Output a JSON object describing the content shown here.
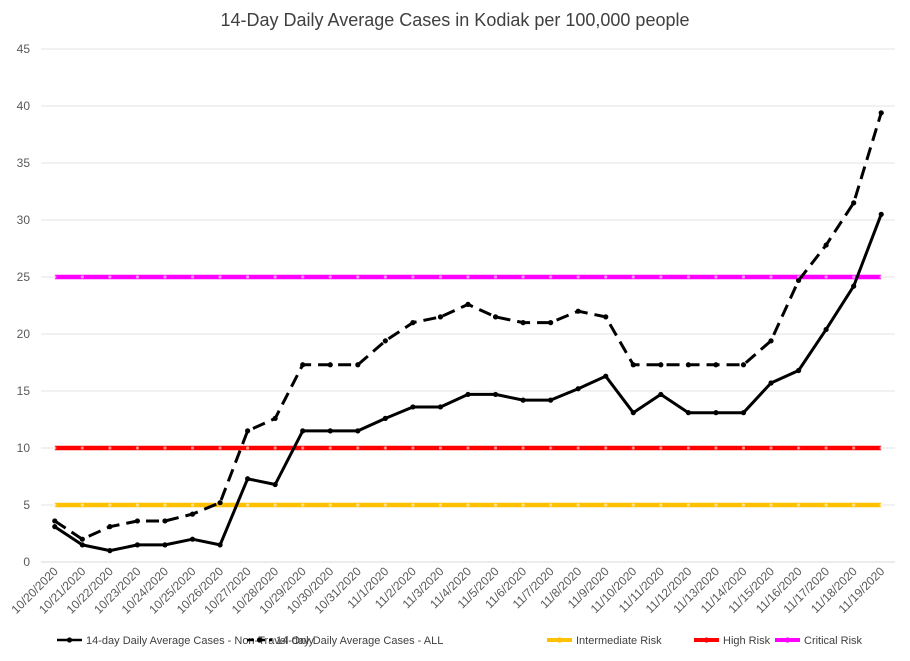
{
  "chart_data": {
    "type": "line",
    "title": "14-Day Daily Average Cases in Kodiak per 100,000 people",
    "xlabel": "",
    "ylabel": "",
    "ylim": [
      0,
      45
    ],
    "yticks": [
      0,
      5,
      10,
      15,
      20,
      25,
      30,
      35,
      40,
      45
    ],
    "grid": true,
    "legend_position": "bottom",
    "categories": [
      "10/20/2020",
      "10/21/2020",
      "10/22/2020",
      "10/23/2020",
      "10/24/2020",
      "10/25/2020",
      "10/26/2020",
      "10/27/2020",
      "10/28/2020",
      "10/29/2020",
      "10/30/2020",
      "10/31/2020",
      "11/1/2020",
      "11/2/2020",
      "11/3/2020",
      "11/4/2020",
      "11/5/2020",
      "11/6/2020",
      "11/7/2020",
      "11/8/2020",
      "11/9/2020",
      "11/10/2020",
      "11/11/2020",
      "11/12/2020",
      "11/13/2020",
      "11/14/2020",
      "11/15/2020",
      "11/16/2020",
      "11/17/2020",
      "11/18/2020",
      "11/19/2020"
    ],
    "series": [
      {
        "name": "14-day Daily Average Cases - Non-Travel Only",
        "color": "#000000",
        "dash": "solid",
        "values": [
          3.1,
          1.5,
          1.0,
          1.5,
          1.5,
          2.0,
          1.5,
          7.3,
          6.8,
          11.5,
          11.5,
          11.5,
          12.6,
          13.6,
          13.6,
          14.7,
          14.7,
          14.2,
          14.2,
          15.2,
          16.3,
          13.1,
          14.7,
          13.1,
          13.1,
          13.1,
          15.7,
          16.8,
          20.4,
          24.2,
          30.5
        ]
      },
      {
        "name": "14-day Daily Average Cases - ALL",
        "color": "#000000",
        "dash": "dashed",
        "values": [
          3.6,
          2.0,
          3.1,
          3.6,
          3.6,
          4.2,
          5.2,
          11.5,
          12.6,
          17.3,
          17.3,
          17.3,
          19.4,
          21.0,
          21.5,
          22.6,
          21.5,
          21.0,
          21.0,
          22.0,
          21.5,
          17.3,
          17.3,
          17.3,
          17.3,
          17.3,
          19.4,
          24.7,
          27.8,
          31.5,
          39.4
        ]
      },
      {
        "name": "Intermediate Risk",
        "color": "#ffc000",
        "dash": "solid",
        "values": [
          5,
          5,
          5,
          5,
          5,
          5,
          5,
          5,
          5,
          5,
          5,
          5,
          5,
          5,
          5,
          5,
          5,
          5,
          5,
          5,
          5,
          5,
          5,
          5,
          5,
          5,
          5,
          5,
          5,
          5,
          5
        ]
      },
      {
        "name": "High Risk",
        "color": "#ff0000",
        "dash": "solid",
        "values": [
          10,
          10,
          10,
          10,
          10,
          10,
          10,
          10,
          10,
          10,
          10,
          10,
          10,
          10,
          10,
          10,
          10,
          10,
          10,
          10,
          10,
          10,
          10,
          10,
          10,
          10,
          10,
          10,
          10,
          10,
          10
        ]
      },
      {
        "name": "Critical Risk",
        "color": "#ff00ff",
        "dash": "solid",
        "values": [
          25,
          25,
          25,
          25,
          25,
          25,
          25,
          25,
          25,
          25,
          25,
          25,
          25,
          25,
          25,
          25,
          25,
          25,
          25,
          25,
          25,
          25,
          25,
          25,
          25,
          25,
          25,
          25,
          25,
          25,
          25
        ]
      }
    ]
  }
}
